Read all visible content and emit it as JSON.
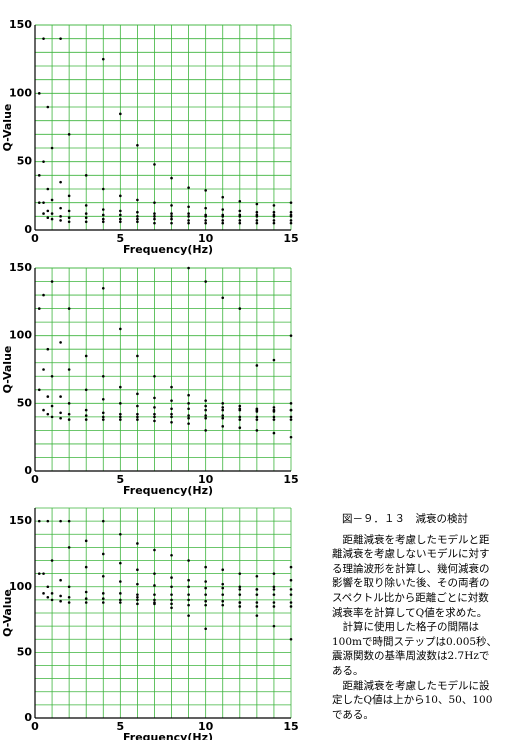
{
  "chart_data": [
    {
      "type": "scatter",
      "xlabel": "Frequency(Hz)",
      "ylabel": "Q-Value",
      "grid": true,
      "xlim": [
        0,
        15
      ],
      "xticks": [
        0,
        5,
        10,
        15
      ],
      "ylim": [
        0,
        150
      ],
      "yticks": [
        0,
        50,
        100,
        150
      ],
      "x": [
        0.25,
        0.5,
        0.75,
        1,
        1.5,
        2,
        3,
        4,
        5,
        6,
        7,
        8,
        9,
        10,
        11,
        12,
        13,
        14,
        15
      ],
      "series": [
        {
          "color": "#000000",
          "values": [
            null,
            null,
            null,
            null,
            null,
            null,
            null,
            125,
            85,
            62,
            48,
            38,
            31,
            29,
            24,
            21,
            19,
            18,
            20
          ]
        },
        {
          "color": "#000000",
          "values": [
            null,
            null,
            null,
            null,
            140,
            70,
            40,
            30,
            25,
            22,
            20,
            18,
            17,
            16,
            15,
            14,
            13,
            13,
            13
          ]
        },
        {
          "color": "#000000",
          "values": [
            null,
            140,
            90,
            60,
            35,
            25,
            18,
            15,
            14,
            13,
            12,
            12,
            12,
            11,
            11,
            11,
            11,
            11,
            11
          ]
        },
        {
          "color": "#000000",
          "values": [
            100,
            50,
            30,
            22,
            16,
            14,
            12,
            11,
            11,
            10,
            10,
            10,
            10,
            10,
            10,
            10,
            10,
            10,
            10
          ]
        },
        {
          "color": "#000000",
          "values": [
            40,
            20,
            14,
            12,
            10,
            9,
            9,
            8,
            8,
            8,
            8,
            8,
            7,
            7,
            7,
            7,
            7,
            7,
            7
          ]
        },
        {
          "color": "#000000",
          "values": [
            20,
            12,
            9,
            8,
            7,
            6,
            6,
            6,
            6,
            6,
            5,
            5,
            5,
            5,
            5,
            5,
            5,
            5,
            5
          ]
        }
      ]
    },
    {
      "type": "scatter",
      "xlabel": "Frequency(Hz)",
      "ylabel": "Q-Value",
      "grid": true,
      "xlim": [
        0,
        15
      ],
      "xticks": [
        0,
        5,
        10,
        15
      ],
      "ylim": [
        0,
        150
      ],
      "yticks": [
        0,
        50,
        100,
        150
      ],
      "x": [
        0.25,
        0.5,
        0.75,
        1,
        1.5,
        2,
        3,
        4,
        5,
        6,
        7,
        8,
        9,
        10,
        11,
        12,
        13,
        14,
        15
      ],
      "series": [
        {
          "color": "#000000",
          "values": [
            null,
            null,
            null,
            null,
            null,
            null,
            null,
            135,
            105,
            85,
            70,
            62,
            56,
            52,
            50,
            48,
            46,
            47,
            50
          ]
        },
        {
          "color": "#000000",
          "values": [
            null,
            null,
            null,
            null,
            null,
            120,
            85,
            70,
            62,
            57,
            54,
            52,
            50,
            48,
            47,
            46,
            44,
            44,
            45
          ]
        },
        {
          "color": "#000000",
          "values": [
            null,
            null,
            null,
            140,
            95,
            75,
            60,
            53,
            50,
            48,
            47,
            46,
            46,
            45,
            45,
            45,
            45,
            45,
            45
          ]
        },
        {
          "color": "#000000",
          "values": [
            null,
            130,
            90,
            70,
            55,
            50,
            45,
            43,
            42,
            42,
            42,
            42,
            41,
            41,
            41,
            40,
            40,
            40,
            40
          ]
        },
        {
          "color": "#000000",
          "values": [
            120,
            75,
            55,
            48,
            43,
            42,
            41,
            40,
            40,
            40,
            40,
            40,
            39,
            39,
            39,
            38,
            38,
            38,
            38
          ]
        },
        {
          "color": "#000000",
          "values": [
            60,
            45,
            42,
            40,
            39,
            38,
            38,
            38,
            38,
            38,
            37,
            36,
            35,
            30,
            33,
            32,
            30,
            28,
            25
          ]
        },
        {
          "color": "#000000",
          "values": [
            null,
            null,
            null,
            null,
            null,
            null,
            null,
            null,
            null,
            null,
            null,
            null,
            150,
            140,
            128,
            120,
            null,
            null,
            null
          ]
        },
        {
          "color": "#000000",
          "values": [
            null,
            null,
            null,
            null,
            null,
            null,
            null,
            null,
            null,
            null,
            null,
            null,
            null,
            null,
            null,
            null,
            78,
            82,
            100
          ]
        }
      ]
    },
    {
      "type": "scatter",
      "xlabel": "Frequency(Hz)",
      "ylabel": "Q-Value",
      "grid": true,
      "xlim": [
        0,
        15
      ],
      "xticks": [
        0,
        5,
        10,
        15
      ],
      "ylim": [
        0,
        160
      ],
      "yticks": [
        0,
        50,
        100,
        150
      ],
      "x": [
        0.25,
        0.5,
        0.75,
        1,
        1.5,
        2,
        3,
        4,
        5,
        6,
        7,
        8,
        9,
        10,
        11,
        12,
        13,
        14,
        15
      ],
      "series": [
        {
          "color": "#000000",
          "values": [
            null,
            null,
            null,
            null,
            null,
            null,
            null,
            150,
            140,
            133,
            128,
            124,
            120,
            115,
            113,
            110,
            108,
            110,
            115
          ]
        },
        {
          "color": "#000000",
          "values": [
            null,
            null,
            null,
            null,
            null,
            150,
            135,
            125,
            118,
            113,
            110,
            107,
            105,
            104,
            102,
            100,
            98,
            100,
            105
          ]
        },
        {
          "color": "#000000",
          "values": [
            null,
            null,
            null,
            null,
            150,
            130,
            115,
            108,
            104,
            102,
            101,
            100,
            100,
            99,
            99,
            98,
            98,
            98,
            98
          ]
        },
        {
          "color": "#000000",
          "values": [
            null,
            null,
            150,
            120,
            105,
            100,
            96,
            95,
            95,
            94,
            94,
            94,
            94,
            94,
            94,
            94,
            94,
            94,
            94
          ]
        },
        {
          "color": "#000000",
          "values": [
            150,
            110,
            100,
            95,
            93,
            92,
            91,
            91,
            90,
            90,
            90,
            90,
            90,
            89,
            89,
            88,
            88,
            88,
            88
          ]
        },
        {
          "color": "#000000",
          "values": [
            110,
            95,
            92,
            90,
            89,
            88,
            88,
            88,
            88,
            87,
            87,
            87,
            86,
            86,
            86,
            85,
            85,
            85,
            85
          ]
        },
        {
          "color": "#000000",
          "values": [
            null,
            null,
            null,
            null,
            null,
            null,
            null,
            null,
            null,
            92,
            88,
            84,
            78,
            68,
            null,
            null,
            null,
            null,
            null
          ]
        },
        {
          "color": "#000000",
          "values": [
            null,
            null,
            null,
            null,
            null,
            null,
            null,
            null,
            null,
            null,
            null,
            null,
            null,
            null,
            null,
            88,
            78,
            70,
            60
          ]
        }
      ]
    }
  ],
  "caption": {
    "title": "図－９．１３　減衰の検討",
    "lines": [
      "　距離減衰を考慮したモデルと距",
      "離減衰を考慮しないモデルに対す",
      "る理論波形を計算し、幾何減衰の",
      "影響を取り除いた後、その両者の",
      "スペクトル比から距離ごとに対数",
      "減衰率を計算してQ値を求めた。",
      "　計算に使用した格子の間隔は",
      "100mで時間ステップは0.005秒、",
      "震源関数の基準周波数は2.7Hzで",
      "ある。",
      "　距離減衰を考慮したモデルに設",
      "定したQ値は上から10、50、100",
      "である。"
    ]
  }
}
